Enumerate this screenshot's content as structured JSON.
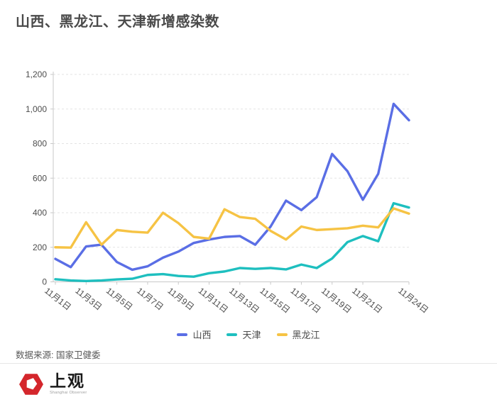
{
  "header": {
    "title": "山西、黑龙江、天津新增感染数"
  },
  "chart_data": {
    "type": "line",
    "title": "山西、黑龙江、天津新增感染数",
    "n_points": 24,
    "x_tick_labels": [
      {
        "index": 0,
        "label": "11月1日"
      },
      {
        "index": 2,
        "label": "11月3日"
      },
      {
        "index": 4,
        "label": "11月5日"
      },
      {
        "index": 6,
        "label": "11月7日"
      },
      {
        "index": 8,
        "label": "11月9日"
      },
      {
        "index": 10,
        "label": "11月11日"
      },
      {
        "index": 12,
        "label": "11月13日"
      },
      {
        "index": 14,
        "label": "11月15日"
      },
      {
        "index": 16,
        "label": "11月17日"
      },
      {
        "index": 18,
        "label": "11月19日"
      },
      {
        "index": 20,
        "label": "11月21日"
      },
      {
        "index": 23,
        "label": "11月24日"
      }
    ],
    "y_tick_labels": [
      "0",
      "200",
      "400",
      "600",
      "800",
      "1,000",
      "1,200"
    ],
    "ylim": [
      0,
      1200
    ],
    "y_step": 200,
    "grid": "horizontal-dashed",
    "legend_position": "bottom",
    "series": [
      {
        "name": "山西",
        "color": "#5a6ee5",
        "values": [
          133,
          85,
          205,
          215,
          115,
          70,
          90,
          140,
          175,
          225,
          245,
          260,
          265,
          215,
          320,
          470,
          415,
          490,
          740,
          640,
          475,
          625,
          1030,
          935
        ]
      },
      {
        "name": "天津",
        "color": "#1ebfbf",
        "values": [
          15,
          8,
          5,
          8,
          14,
          18,
          40,
          45,
          34,
          30,
          50,
          60,
          80,
          75,
          80,
          72,
          100,
          80,
          135,
          230,
          265,
          235,
          455,
          430
        ]
      },
      {
        "name": "黑龙江",
        "color": "#f6c344",
        "values": [
          200,
          198,
          345,
          215,
          300,
          290,
          285,
          400,
          340,
          260,
          250,
          420,
          375,
          365,
          295,
          245,
          320,
          300,
          305,
          310,
          325,
          315,
          425,
          395
        ]
      }
    ]
  },
  "footer": {
    "source": "数据来源: 国家卫健委"
  },
  "logo": {
    "name": "上观",
    "subtitle": "Shanghai Observer"
  }
}
